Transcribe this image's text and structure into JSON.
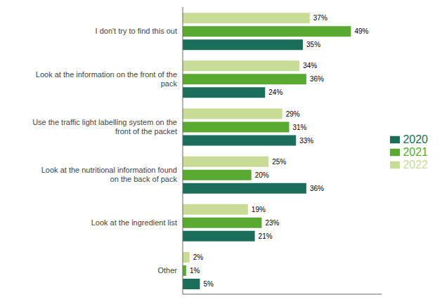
{
  "chart_data": {
    "type": "bar",
    "orientation": "horizontal",
    "categories": [
      "I don't try to find this out",
      "Look at the information on the front of the\npack",
      "Use the traffic light labelling system on the\nfront of the packet",
      "Look at the nutritional information found\non the back of pack",
      "Look at the ingredient list",
      "Other"
    ],
    "series": [
      {
        "name": "2022",
        "color": "#c8dc96",
        "values": [
          37,
          34,
          29,
          25,
          19,
          2
        ],
        "value_labels": [
          "37%",
          "34%",
          "29%",
          "25%",
          "19%",
          "2%"
        ]
      },
      {
        "name": "2021",
        "color": "#5aaa32",
        "values": [
          49,
          36,
          31,
          20,
          23,
          1
        ],
        "value_labels": [
          "49%",
          "36%",
          "31%",
          "20%",
          "23%",
          "1%"
        ]
      },
      {
        "name": "2020",
        "color": "#1a6e5a",
        "values": [
          35,
          24,
          33,
          36,
          21,
          5
        ],
        "value_labels": [
          "35%",
          "24%",
          "33%",
          "36%",
          "21%",
          "5%"
        ]
      }
    ],
    "xlim": [
      0,
      58
    ],
    "data_labels": true,
    "tick_labels": "y",
    "grid": false,
    "legend": "right"
  }
}
